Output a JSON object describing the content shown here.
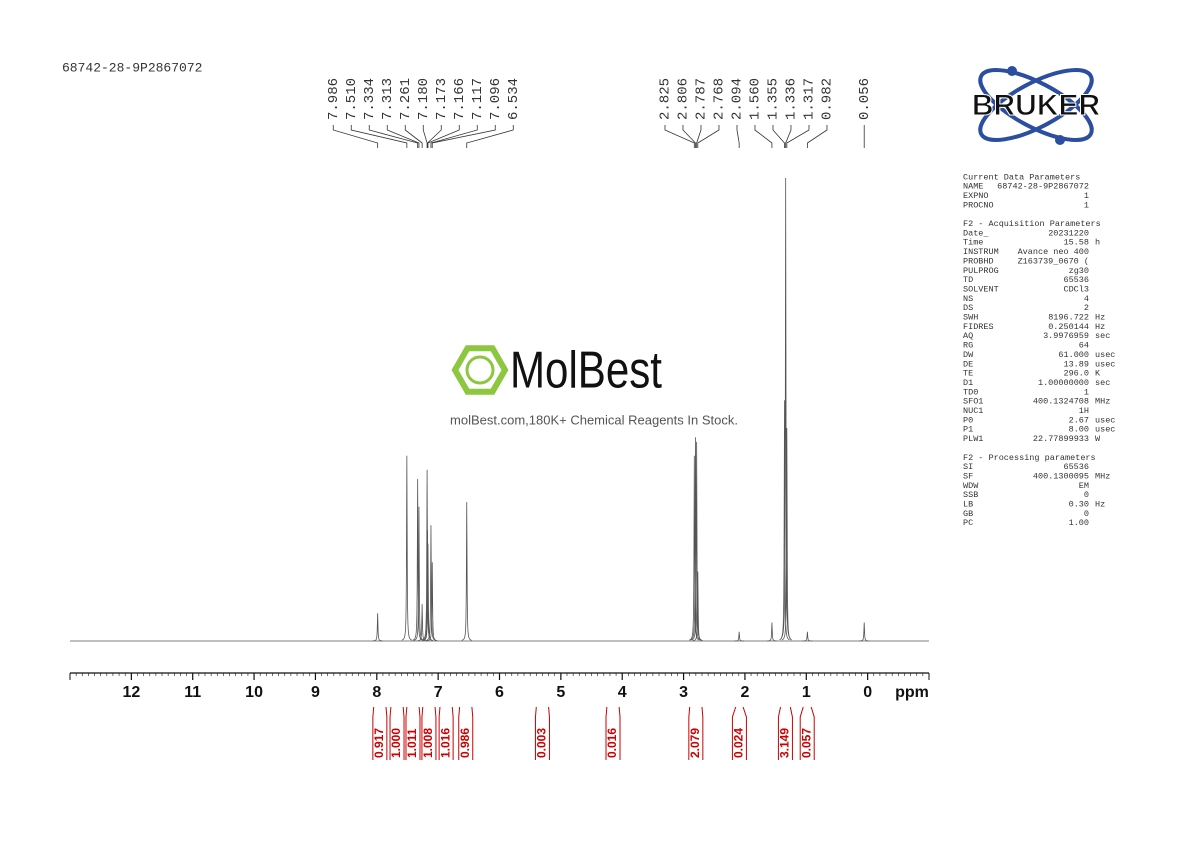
{
  "sample_id": "68742-28-9P2867072",
  "logo": "BRUKER",
  "watermark": {
    "title": "MolBest",
    "subtitle": "molBest.com,180K+ Chemical Reagents In Stock."
  },
  "parameters": [
    {
      "title": "Current Data Parameters",
      "rows": [
        {
          "name": "NAME",
          "value": "68742-28-9P2867072"
        },
        {
          "name": "EXPNO",
          "value": "1"
        },
        {
          "name": "PROCNO",
          "value": "1"
        }
      ]
    },
    {
      "title": "F2 - Acquisition Parameters",
      "rows": [
        {
          "name": "Date_",
          "value": "20231220"
        },
        {
          "name": "Time",
          "value": "15.58",
          "unit": "h"
        },
        {
          "name": "INSTRUM",
          "value": "Avance neo 400"
        },
        {
          "name": "PROBHD",
          "value": "Z163739_0670 ("
        },
        {
          "name": "PULPROG",
          "value": "zg30"
        },
        {
          "name": "TD",
          "value": "65536"
        },
        {
          "name": "SOLVENT",
          "value": "CDCl3"
        },
        {
          "name": "NS",
          "value": "4"
        },
        {
          "name": "DS",
          "value": "2"
        },
        {
          "name": "SWH",
          "value": "8196.722",
          "unit": "Hz"
        },
        {
          "name": "FIDRES",
          "value": "0.250144",
          "unit": "Hz"
        },
        {
          "name": "AQ",
          "value": "3.9976959",
          "unit": "sec"
        },
        {
          "name": "RG",
          "value": "64"
        },
        {
          "name": "DW",
          "value": "61.000",
          "unit": "usec"
        },
        {
          "name": "DE",
          "value": "13.89",
          "unit": "usec"
        },
        {
          "name": "TE",
          "value": "296.0",
          "unit": "K"
        },
        {
          "name": "D1",
          "value": "1.00000000",
          "unit": "sec"
        },
        {
          "name": "TD0",
          "value": "1"
        },
        {
          "name": "SFO1",
          "value": "400.1324708",
          "unit": "MHz"
        },
        {
          "name": "NUC1",
          "value": "1H"
        },
        {
          "name": "P0",
          "value": "2.67",
          "unit": "usec"
        },
        {
          "name": "P1",
          "value": "8.00",
          "unit": "usec"
        },
        {
          "name": "PLW1",
          "value": "22.77899933",
          "unit": "W"
        }
      ]
    },
    {
      "title": "F2 - Processing parameters",
      "rows": [
        {
          "name": "SI",
          "value": "65536"
        },
        {
          "name": "SF",
          "value": "400.1300095",
          "unit": "MHz"
        },
        {
          "name": "WDW",
          "value": "EM"
        },
        {
          "name": "SSB",
          "value": "0"
        },
        {
          "name": "LB",
          "value": "0.30",
          "unit": "Hz"
        },
        {
          "name": "GB",
          "value": "0"
        },
        {
          "name": "PC",
          "value": "1.00"
        }
      ]
    }
  ],
  "chart_data": {
    "type": "nmr",
    "x_label": "ppm",
    "color": "#555555",
    "xlim": [
      13,
      -1
    ],
    "xticks": [
      12,
      11,
      10,
      9,
      8,
      7,
      6,
      5,
      4,
      3,
      2,
      1,
      0
    ],
    "minor_tick_step": 0.1,
    "ylim": [
      0,
      100
    ],
    "peaks": {
      "x": [
        7.986,
        7.51,
        7.334,
        7.313,
        7.261,
        7.18,
        7.173,
        7.166,
        7.117,
        7.096,
        6.534,
        2.825,
        2.806,
        2.787,
        2.768,
        2.094,
        1.56,
        1.355,
        1.336,
        1.317,
        0.982,
        0.056
      ],
      "x_labels": [
        "7.986",
        "7.510",
        "7.334",
        "7.313",
        "7.261",
        "7.180",
        "7.173",
        "7.166",
        "7.117",
        "7.096",
        "6.534",
        "2.825",
        "2.806",
        "2.787",
        "2.768",
        "2.094",
        "1.560",
        "1.355",
        "1.336",
        "1.317",
        "0.982",
        "0.056"
      ],
      "values": [
        6,
        40,
        35,
        29,
        8,
        37,
        24,
        21,
        25,
        17,
        30,
        40,
        44,
        43,
        15,
        2,
        4,
        52,
        100,
        46,
        2,
        4
      ]
    },
    "integrals": {
      "from": [
        8.05,
        7.77,
        7.51,
        7.25,
        6.97,
        6.65,
        5.4,
        4.25,
        2.9,
        2.15,
        1.42,
        1.05
      ],
      "to": [
        7.85,
        7.57,
        7.31,
        7.05,
        6.77,
        6.45,
        5.2,
        4.05,
        2.7,
        2.03,
        1.26,
        0.92
      ],
      "values": [
        0.917,
        1,
        1.011,
        1.008,
        1.016,
        0.986,
        0.003,
        0.016,
        2.079,
        0.024,
        3.149,
        0.057
      ],
      "value_labels": [
        "0.917",
        "1.000",
        "1.011",
        "1.008",
        "1.016",
        "0.986",
        "0.003",
        "0.016",
        "2.079",
        "0.024",
        "3.149",
        "0.057"
      ],
      "color": "#cc0000"
    }
  }
}
